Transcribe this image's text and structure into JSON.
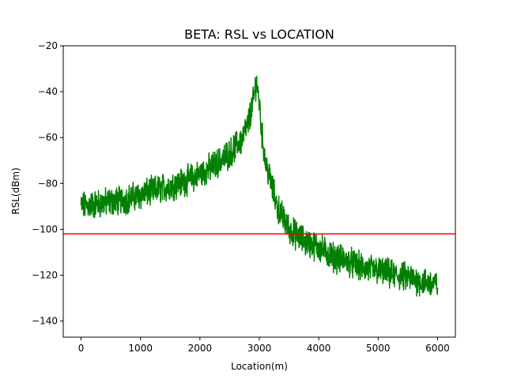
{
  "chart_data": {
    "type": "line",
    "title": "BETA: RSL vs LOCATION",
    "xlabel": "Location(m)",
    "ylabel": "RSL(dBm)",
    "xlim": [
      -300,
      6300
    ],
    "ylim": [
      -147,
      -20
    ],
    "xticks": [
      0,
      1000,
      2000,
      3000,
      4000,
      5000,
      6000
    ],
    "xtick_labels": [
      "0",
      "1000",
      "2000",
      "3000",
      "4000",
      "5000",
      "6000"
    ],
    "yticks": [
      -140,
      -120,
      -100,
      -80,
      -60,
      -40,
      -20
    ],
    "ytick_labels": [
      "−140",
      "−120",
      "−100",
      "−80",
      "−60",
      "−40",
      "−20"
    ],
    "grid": false,
    "series": [
      {
        "color": "#008000",
        "x": [
          0,
          250,
          500,
          750,
          1000,
          1250,
          1500,
          1750,
          2000,
          2250,
          2500,
          2700,
          2800,
          2900,
          2950,
          3000,
          3050,
          3100,
          3200,
          3300,
          3500,
          3750,
          4000,
          4250,
          4500,
          4750,
          5000,
          5250,
          5500,
          5750,
          6000
        ],
        "y": [
          -90,
          -89,
          -88,
          -87,
          -85,
          -83,
          -81,
          -79,
          -76,
          -72,
          -67,
          -61,
          -55,
          -44,
          -35,
          -45,
          -60,
          -70,
          -80,
          -90,
          -100,
          -105,
          -108,
          -112,
          -114,
          -117,
          -118,
          -120,
          -121,
          -123,
          -124
        ],
        "noise_amplitude": 5
      },
      {
        "color": "#ff0000",
        "x": [
          -300,
          6300
        ],
        "y": [
          -102,
          -102
        ]
      }
    ]
  }
}
